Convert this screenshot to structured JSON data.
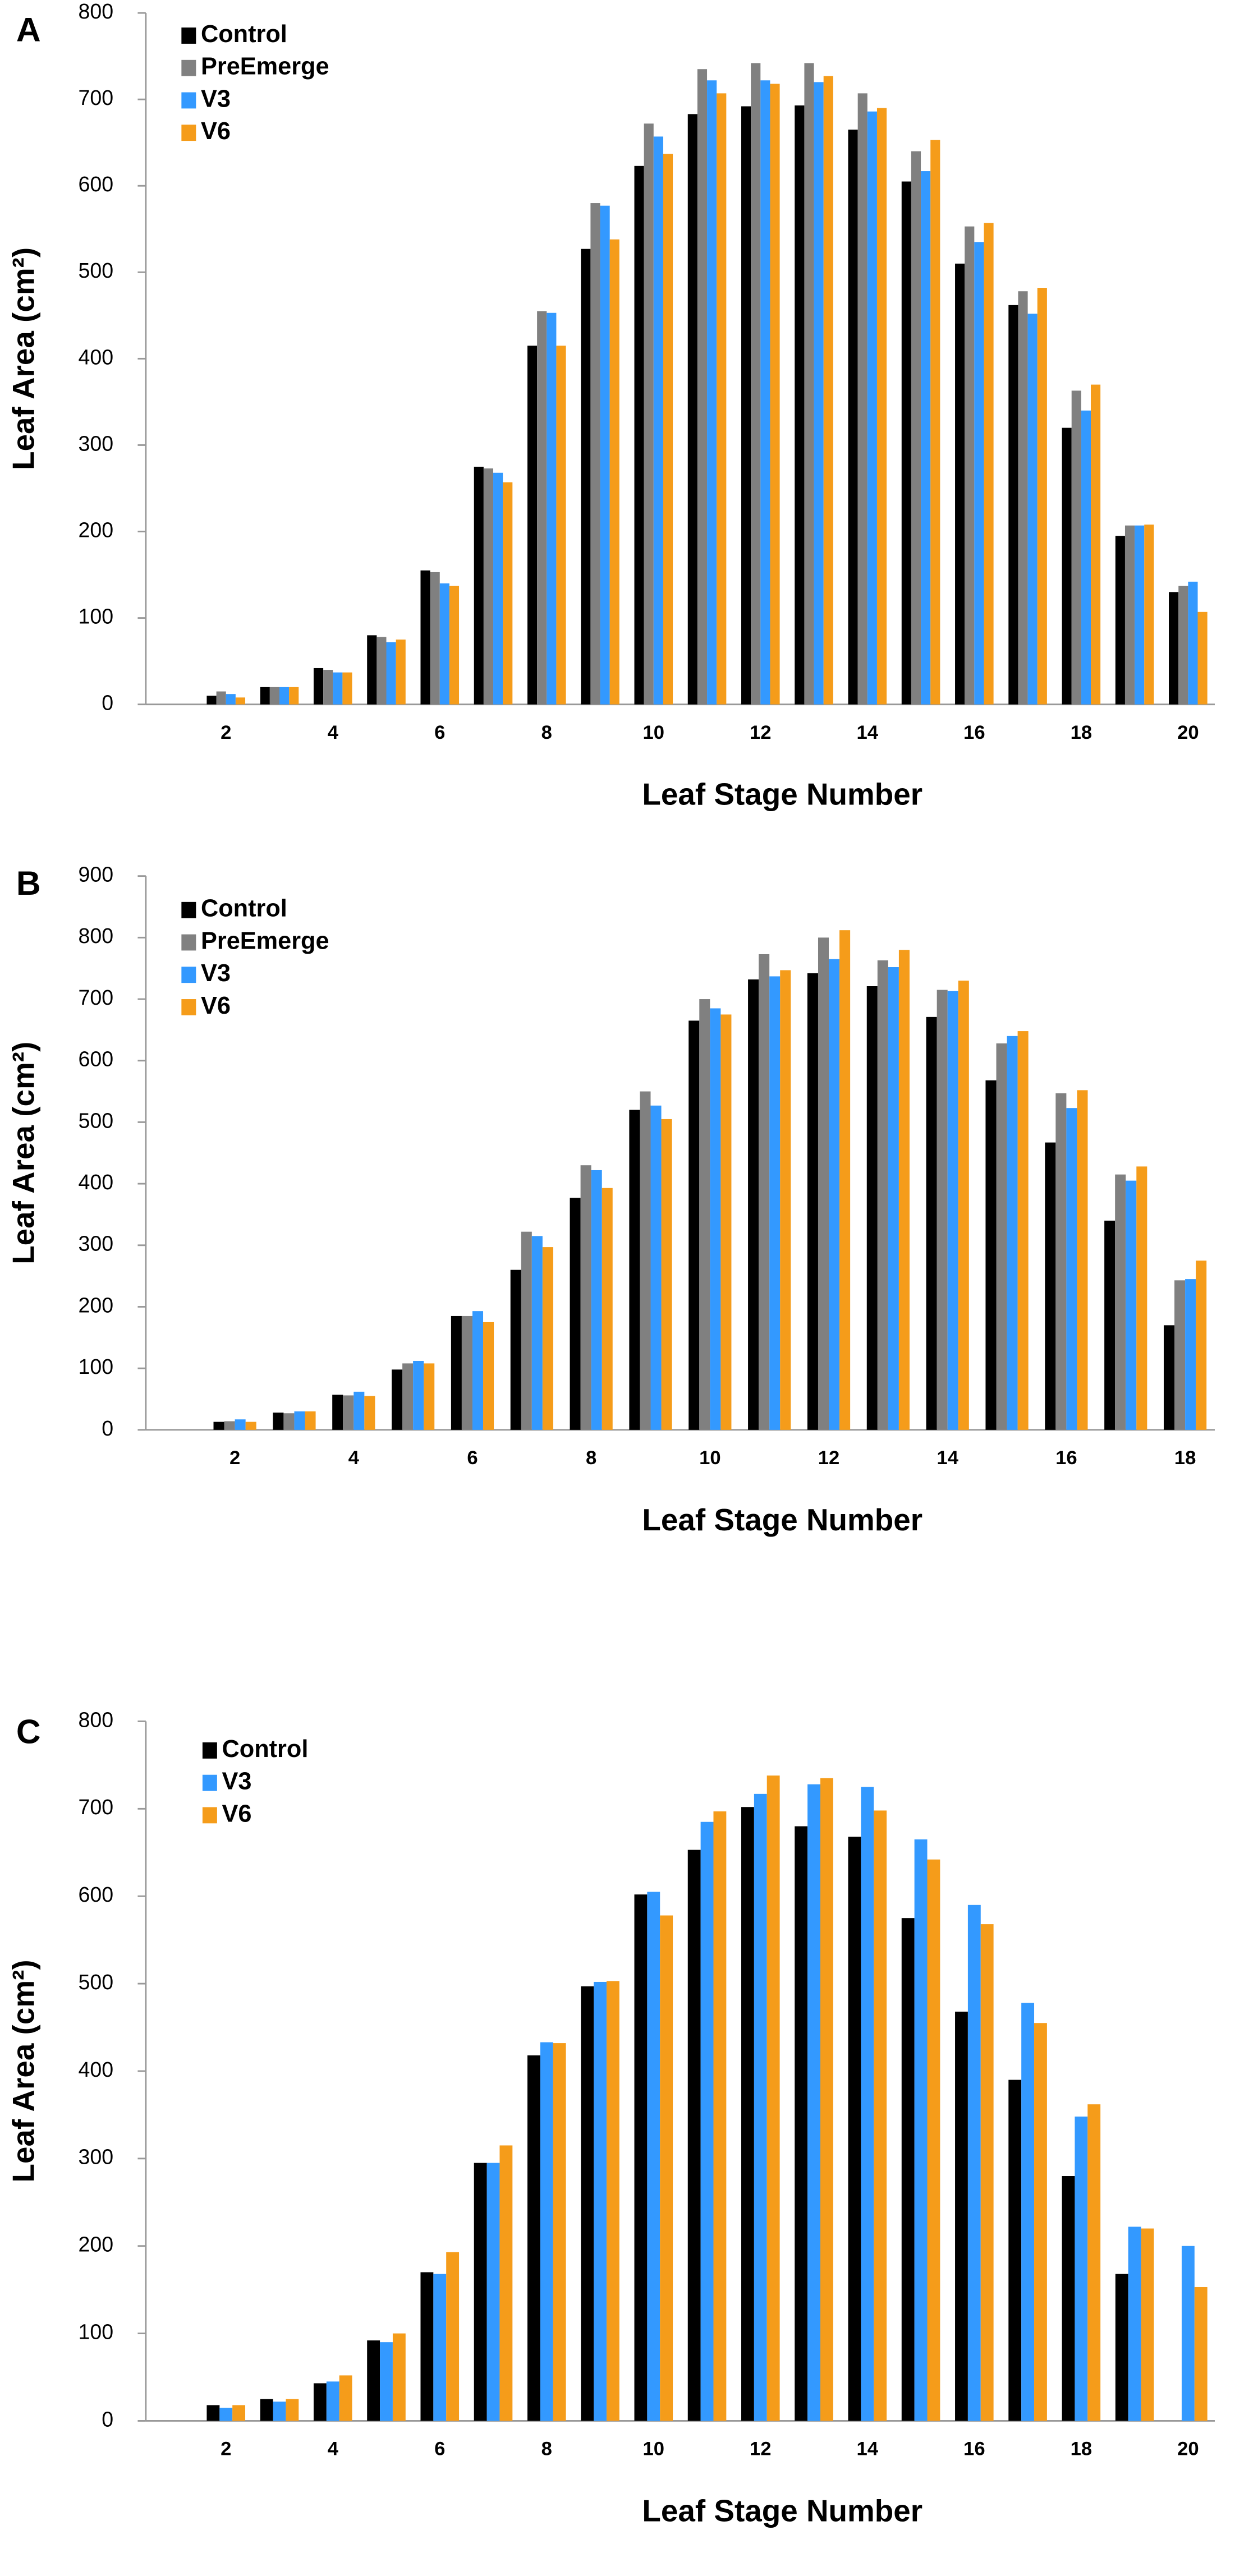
{
  "chart_data": [
    {
      "type": "bar",
      "panel_label": "A",
      "ylabel": "Leaf Area (cm²)",
      "xlabel": "Leaf Stage Number",
      "categories": [
        null,
        2,
        null,
        4,
        null,
        6,
        null,
        8,
        null,
        10,
        null,
        12,
        null,
        14,
        null,
        16,
        null,
        18,
        null,
        20
      ],
      "ylim": [
        0,
        800
      ],
      "yticks": [
        0,
        100,
        200,
        300,
        400,
        500,
        600,
        700,
        800
      ],
      "series": [
        {
          "name": "Control",
          "color": "#000000",
          "values": [
            null,
            10,
            20,
            42,
            80,
            155,
            275,
            415,
            527,
            623,
            683,
            692,
            693,
            665,
            605,
            510,
            462,
            320,
            195,
            130
          ]
        },
        {
          "name": "PreEmerge",
          "color": "#808080",
          "values": [
            null,
            15,
            20,
            40,
            78,
            153,
            273,
            455,
            580,
            672,
            735,
            742,
            742,
            707,
            640,
            553,
            478,
            363,
            207,
            137
          ]
        },
        {
          "name": "V3",
          "color": "#3399ff",
          "values": [
            null,
            12,
            20,
            37,
            72,
            140,
            268,
            453,
            577,
            657,
            722,
            722,
            720,
            686,
            617,
            535,
            452,
            340,
            207,
            142
          ]
        },
        {
          "name": "V6",
          "color": "#f59c1a",
          "values": [
            null,
            8,
            20,
            37,
            75,
            137,
            257,
            415,
            538,
            637,
            707,
            718,
            727,
            690,
            653,
            557,
            482,
            370,
            208,
            107
          ]
        }
      ]
    },
    {
      "type": "bar",
      "panel_label": "B",
      "ylabel": "Leaf Area (cm²)",
      "xlabel": "Leaf Stage Number",
      "categories": [
        null,
        2,
        null,
        4,
        null,
        6,
        null,
        8,
        null,
        10,
        null,
        12,
        null,
        14,
        null,
        16,
        null,
        18
      ],
      "ylim": [
        0,
        900
      ],
      "yticks": [
        0,
        100,
        200,
        300,
        400,
        500,
        600,
        700,
        800,
        900
      ],
      "series": [
        {
          "name": "Control",
          "color": "#000000",
          "values": [
            null,
            13,
            28,
            57,
            98,
            185,
            260,
            377,
            520,
            665,
            732,
            742,
            721,
            671,
            568,
            467,
            340,
            170
          ]
        },
        {
          "name": "PreEmerge",
          "color": "#808080",
          "values": [
            null,
            14,
            27,
            56,
            108,
            185,
            322,
            430,
            550,
            700,
            773,
            800,
            763,
            715,
            628,
            547,
            415,
            243
          ]
        },
        {
          "name": "V3",
          "color": "#3399ff",
          "values": [
            null,
            17,
            30,
            62,
            112,
            193,
            315,
            422,
            527,
            685,
            737,
            765,
            752,
            713,
            640,
            523,
            405,
            245
          ]
        },
        {
          "name": "V6",
          "color": "#f59c1a",
          "values": [
            null,
            13,
            30,
            55,
            108,
            175,
            297,
            393,
            505,
            675,
            747,
            812,
            780,
            730,
            648,
            552,
            428,
            275
          ]
        }
      ]
    },
    {
      "type": "bar",
      "panel_label": "C",
      "ylabel": "Leaf Area (cm²)",
      "xlabel": "Leaf Stage Number",
      "categories": [
        null,
        2,
        null,
        4,
        null,
        6,
        null,
        8,
        null,
        10,
        null,
        12,
        null,
        14,
        null,
        16,
        null,
        18,
        null,
        20
      ],
      "ylim": [
        0,
        800
      ],
      "yticks": [
        0,
        100,
        200,
        300,
        400,
        500,
        600,
        700,
        800
      ],
      "series": [
        {
          "name": "Control",
          "color": "#000000",
          "values": [
            null,
            18,
            25,
            43,
            92,
            170,
            295,
            418,
            497,
            602,
            653,
            702,
            680,
            668,
            575,
            468,
            390,
            280,
            168,
            null
          ]
        },
        {
          "name": "V3",
          "color": "#3399ff",
          "values": [
            null,
            15,
            22,
            45,
            90,
            168,
            295,
            433,
            502,
            605,
            685,
            717,
            728,
            725,
            665,
            590,
            478,
            348,
            222,
            200
          ]
        },
        {
          "name": "V6",
          "color": "#f59c1a",
          "values": [
            null,
            18,
            25,
            52,
            100,
            193,
            315,
            432,
            503,
            578,
            697,
            738,
            735,
            698,
            642,
            568,
            455,
            362,
            220,
            153
          ]
        }
      ]
    }
  ]
}
